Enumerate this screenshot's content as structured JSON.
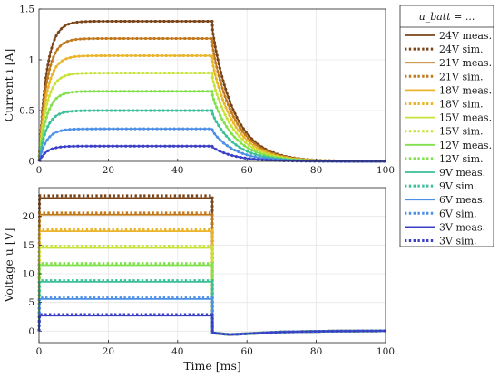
{
  "chart_data": [
    {
      "type": "line",
      "id": "current",
      "xlabel": "",
      "ylabel": "Current i [A]",
      "xlim": [
        0,
        100
      ],
      "ylim": [
        0,
        1.5
      ],
      "xticks": [
        0,
        20,
        40,
        60,
        80,
        100
      ],
      "yticks": [
        0,
        0.5,
        1,
        1.5
      ],
      "xtick_labels": [
        "0",
        "20",
        "40",
        "60",
        "80",
        "100"
      ],
      "ytick_labels": [
        "0",
        "0.5",
        "1",
        "1.5"
      ],
      "grid": true,
      "pulse_end": 50,
      "series": [
        {
          "name": "24V meas.",
          "steady": 1.38
        },
        {
          "name": "24V sim.",
          "steady": 1.38
        },
        {
          "name": "21V meas.",
          "steady": 1.21
        },
        {
          "name": "21V sim.",
          "steady": 1.21
        },
        {
          "name": "18V meas.",
          "steady": 1.04
        },
        {
          "name": "18V sim.",
          "steady": 1.04
        },
        {
          "name": "15V meas.",
          "steady": 0.87
        },
        {
          "name": "15V sim.",
          "steady": 0.87
        },
        {
          "name": "12V meas.",
          "steady": 0.69
        },
        {
          "name": "12V sim.",
          "steady": 0.69
        },
        {
          "name": "9V meas.",
          "steady": 0.5
        },
        {
          "name": "9V sim.",
          "steady": 0.5
        },
        {
          "name": "6V meas.",
          "steady": 0.32
        },
        {
          "name": "6V sim.",
          "steady": 0.32
        },
        {
          "name": "3V meas.",
          "steady": 0.15
        },
        {
          "name": "3V sim.",
          "steady": 0.15
        }
      ]
    },
    {
      "type": "line",
      "id": "voltage",
      "xlabel": "Time [ms]",
      "ylabel": "Voltage u [V]",
      "xlim": [
        0,
        100
      ],
      "ylim": [
        -2,
        25
      ],
      "xticks": [
        0,
        20,
        40,
        60,
        80,
        100
      ],
      "yticks": [
        0,
        5,
        10,
        15,
        20
      ],
      "xtick_labels": [
        "0",
        "20",
        "40",
        "60",
        "80",
        "100"
      ],
      "ytick_labels": [
        "0",
        "5",
        "10",
        "15",
        "20"
      ],
      "grid": true,
      "pulse_end": 50,
      "series": [
        {
          "name": "24V meas.",
          "level": 23.2
        },
        {
          "name": "24V sim.",
          "level": 23.6
        },
        {
          "name": "21V meas.",
          "level": 20.3
        },
        {
          "name": "21V sim.",
          "level": 20.6
        },
        {
          "name": "18V meas.",
          "level": 17.4
        },
        {
          "name": "18V sim.",
          "level": 17.7
        },
        {
          "name": "15V meas.",
          "level": 14.5
        },
        {
          "name": "15V sim.",
          "level": 14.8
        },
        {
          "name": "12V meas.",
          "level": 11.5
        },
        {
          "name": "12V sim.",
          "level": 11.8
        },
        {
          "name": "9V meas.",
          "level": 8.6
        },
        {
          "name": "9V sim.",
          "level": 8.8
        },
        {
          "name": "6V meas.",
          "level": 5.6
        },
        {
          "name": "6V sim.",
          "level": 5.8
        },
        {
          "name": "3V meas.",
          "level": 2.7
        },
        {
          "name": "3V sim.",
          "level": 2.9
        }
      ]
    }
  ],
  "legend": {
    "title": "u_batt = ...",
    "placement": "right",
    "entries": [
      {
        "label": "24V meas.",
        "style": "solid",
        "color": "#7a4419"
      },
      {
        "label": "24V sim.",
        "style": "dotted",
        "color": "#7a4419"
      },
      {
        "label": "21V meas.",
        "style": "solid",
        "color": "#c07a1c"
      },
      {
        "label": "21V sim.",
        "style": "dotted",
        "color": "#c07a1c"
      },
      {
        "label": "18V meas.",
        "style": "solid",
        "color": "#eab52a"
      },
      {
        "label": "18V sim.",
        "style": "dotted",
        "color": "#eab52a"
      },
      {
        "label": "15V meas.",
        "style": "solid",
        "color": "#c8e23a"
      },
      {
        "label": "15V sim.",
        "style": "dotted",
        "color": "#c8e23a"
      },
      {
        "label": "12V meas.",
        "style": "solid",
        "color": "#82e04e"
      },
      {
        "label": "12V sim.",
        "style": "dotted",
        "color": "#82e04e"
      },
      {
        "label": "9V meas.",
        "style": "solid",
        "color": "#3bbf98"
      },
      {
        "label": "9V sim.",
        "style": "dotted",
        "color": "#3bbf98"
      },
      {
        "label": "6V meas.",
        "style": "solid",
        "color": "#4c8fe6"
      },
      {
        "label": "6V sim.",
        "style": "dotted",
        "color": "#4c8fe6"
      },
      {
        "label": "3V meas.",
        "style": "solid",
        "color": "#3a3fc6"
      },
      {
        "label": "3V sim.",
        "style": "dotted",
        "color": "#3a3fc6"
      }
    ]
  }
}
